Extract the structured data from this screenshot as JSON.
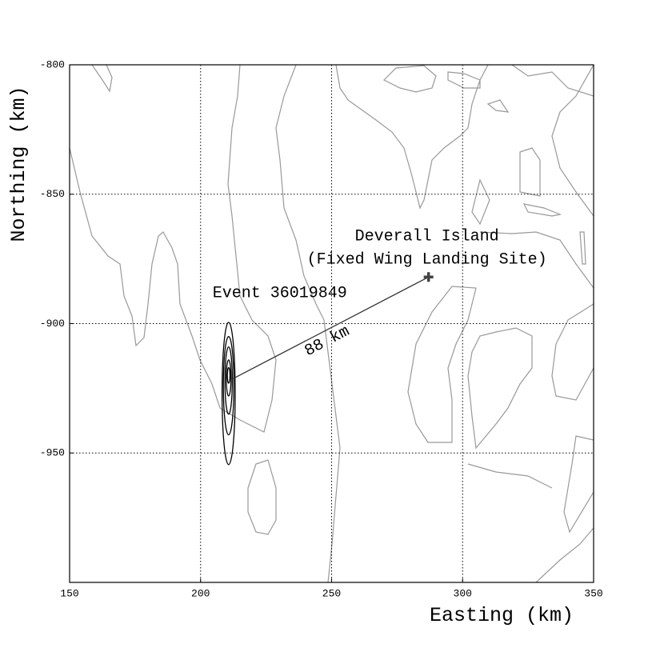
{
  "chart_data": {
    "type": "map",
    "xlabel": "Easting (km)",
    "ylabel": "Northing (km)",
    "xlim": [
      150,
      350
    ],
    "ylim": [
      -1000,
      -800
    ],
    "xticks": [
      150,
      200,
      250,
      300,
      350
    ],
    "yticks": [
      -800,
      -850,
      -900,
      -950
    ],
    "grid": true,
    "event": {
      "label": "Event 36019849",
      "x": 211,
      "y": -922
    },
    "site": {
      "label": [
        "Deverall Island",
        "(Fixed Wing Landing Site)"
      ],
      "x": 287,
      "y": -882,
      "color": "#444444"
    },
    "distance_label": "88 km",
    "ellipses": [
      {
        "cx": 210.7,
        "cy": -927,
        "rx": 2.5,
        "ry": 27.5
      },
      {
        "cx": 210.7,
        "cy": -924,
        "rx": 2.0,
        "ry": 19
      },
      {
        "cx": 210.7,
        "cy": -922,
        "rx": 1.4,
        "ry": 13
      },
      {
        "cx": 210.7,
        "cy": -921,
        "rx": 0.9,
        "ry": 7
      },
      {
        "cx": 210.7,
        "cy": -920,
        "rx": 0.5,
        "ry": 3
      }
    ]
  }
}
